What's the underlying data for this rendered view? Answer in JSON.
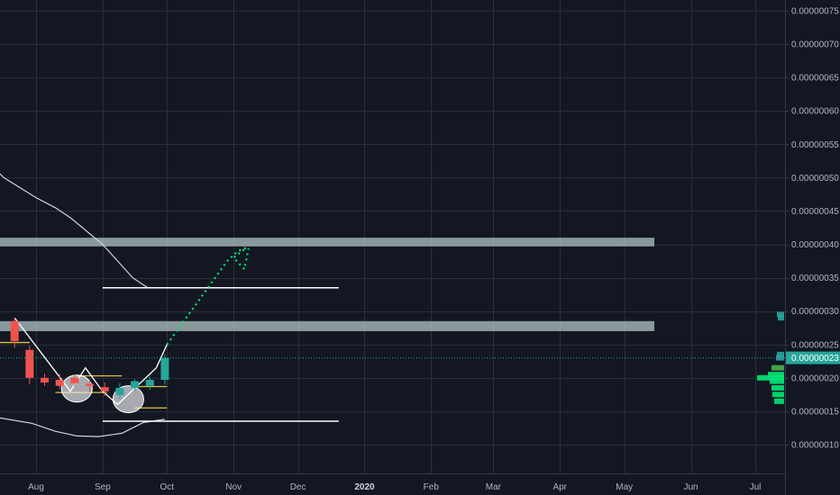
{
  "chart_data": {
    "type": "candlestick",
    "y_axis": {
      "ticks": [
        "0.00000075",
        "0.00000070",
        "0.00000065",
        "0.00000060",
        "0.00000055",
        "0.00000050",
        "0.00000045",
        "0.00000040",
        "0.00000035",
        "0.00000030",
        "0.00000025",
        "0.00000020",
        "0.00000015",
        "0.00000010"
      ],
      "ylim": [
        5e-08,
        7.8e-07
      ]
    },
    "x_axis": {
      "ticks": [
        "Aug",
        "Sep",
        "Oct",
        "Nov",
        "Dec",
        "2020",
        "Feb",
        "Mar",
        "Apr",
        "May",
        "Jun",
        "Jul"
      ],
      "major_tick": "2020"
    },
    "last_price": {
      "label": "0.00000023",
      "value": 2.3e-07,
      "color": "#26a69a"
    },
    "candles": [
      {
        "date": "2019-07-22",
        "open": 2.85e-07,
        "high": 2.9e-07,
        "low": 2.45e-07,
        "close": 2.55e-07
      },
      {
        "date": "2019-07-29",
        "open": 2.42e-07,
        "high": 2.48e-07,
        "low": 1.9e-07,
        "close": 2e-07
      },
      {
        "date": "2019-08-05",
        "open": 2e-07,
        "high": 2.06e-07,
        "low": 1.88e-07,
        "close": 1.93e-07
      },
      {
        "date": "2019-08-12",
        "open": 1.97e-07,
        "high": 2.06e-07,
        "low": 1.83e-07,
        "close": 1.88e-07
      },
      {
        "date": "2019-08-19",
        "open": 2e-07,
        "high": 2.05e-07,
        "low": 1.88e-07,
        "close": 1.92e-07
      },
      {
        "date": "2019-08-26",
        "open": 1.91e-07,
        "high": 1.98e-07,
        "low": 1.78e-07,
        "close": 1.88e-07
      },
      {
        "date": "2019-09-02",
        "open": 1.86e-07,
        "high": 1.93e-07,
        "low": 1.73e-07,
        "close": 1.8e-07
      },
      {
        "date": "2019-09-09",
        "open": 1.74e-07,
        "high": 1.92e-07,
        "low": 1.68e-07,
        "close": 1.85e-07
      },
      {
        "date": "2019-09-16",
        "open": 1.85e-07,
        "high": 1.98e-07,
        "low": 1.8e-07,
        "close": 1.95e-07
      },
      {
        "date": "2019-09-23",
        "open": 1.88e-07,
        "high": 2.02e-07,
        "low": 1.82e-07,
        "close": 1.97e-07
      },
      {
        "date": "2019-09-30",
        "open": 1.97e-07,
        "high": 2.35e-07,
        "low": 1.9e-07,
        "close": 2.3e-07
      }
    ],
    "moving_average": [
      {
        "date": "2019-06-01",
        "value": 6.93e-07
      },
      {
        "date": "2019-06-07",
        "value": 6.67e-07
      },
      {
        "date": "2019-06-18",
        "value": 6e-07
      },
      {
        "date": "2019-07-01",
        "value": 5.5e-07
      },
      {
        "date": "2019-07-17",
        "value": 5e-07
      },
      {
        "date": "2019-08-01",
        "value": 4.7e-07
      },
      {
        "date": "2019-08-10",
        "value": 4.55e-07
      },
      {
        "date": "2019-08-17",
        "value": 4.4e-07
      },
      {
        "date": "2019-09-01",
        "value": 4e-07
      },
      {
        "date": "2019-09-15",
        "value": 3.5e-07
      },
      {
        "date": "2019-09-22",
        "value": 3.35e-07
      }
    ],
    "lower_band": [
      {
        "date": "2019-06-01",
        "value": 1.5e-07
      },
      {
        "date": "2019-06-10",
        "value": 1.45e-07
      },
      {
        "date": "2019-06-20",
        "value": 1.48e-07
      },
      {
        "date": "2019-07-01",
        "value": 1.43e-07
      },
      {
        "date": "2019-07-15",
        "value": 1.4e-07
      },
      {
        "date": "2019-07-30",
        "value": 1.32e-07
      },
      {
        "date": "2019-08-10",
        "value": 1.2e-07
      },
      {
        "date": "2019-08-20",
        "value": 1.13e-07
      },
      {
        "date": "2019-08-30",
        "value": 1.12e-07
      },
      {
        "date": "2019-09-10",
        "value": 1.17e-07
      },
      {
        "date": "2019-09-20",
        "value": 1.33e-07
      },
      {
        "date": "2019-09-30",
        "value": 1.38e-07
      }
    ],
    "resistance_zones": [
      {
        "low": 3.97e-07,
        "high": 4.1e-07,
        "from": "2019-06-01",
        "to": "2020-05-15"
      },
      {
        "low": 2.7e-07,
        "high": 2.85e-07,
        "from": "2019-06-01",
        "to": "2020-05-15"
      }
    ],
    "horizontal_lines": [
      {
        "value": 3.35e-07,
        "from": "2019-09-01",
        "to": "2019-12-20",
        "color": "#ffffff"
      },
      {
        "value": 1.35e-07,
        "from": "2019-09-01",
        "to": "2019-12-20",
        "color": "#ffffff"
      }
    ],
    "short_levels": [
      {
        "value": 2.53e-07,
        "from": "2019-06-01",
        "to": "2019-07-29",
        "color": "#e0c341"
      },
      {
        "value": 2.03e-07,
        "from": "2019-08-20",
        "to": "2019-09-10",
        "color": "#e0c341"
      },
      {
        "value": 1.78e-07,
        "from": "2019-08-10",
        "to": "2019-09-03",
        "color": "#e0c341"
      },
      {
        "value": 1.55e-07,
        "from": "2019-09-16",
        "to": "2019-10-01",
        "color": "#e0c341"
      },
      {
        "value": 1.87e-07,
        "from": "2019-09-14",
        "to": "2019-10-01",
        "color": "#e0c341"
      }
    ],
    "pattern_path": [
      {
        "date": "2019-07-22",
        "value": 2.9e-07
      },
      {
        "date": "2019-08-17",
        "value": 1.8e-07
      },
      {
        "date": "2019-08-24",
        "value": 2.15e-07
      },
      {
        "date": "2019-09-01",
        "value": 1.8e-07
      },
      {
        "date": "2019-09-08",
        "value": 1.6e-07
      },
      {
        "date": "2019-09-26",
        "value": 2.15e-07
      },
      {
        "date": "2019-10-01",
        "value": 2.5e-07
      }
    ],
    "pattern_circles": [
      {
        "date": "2019-08-20",
        "value": 1.84e-07
      },
      {
        "date": "2019-09-13",
        "value": 1.68e-07
      }
    ],
    "projection_path": [
      {
        "date": "2019-10-01",
        "value": 2.5e-07
      },
      {
        "date": "2019-10-29",
        "value": 3.75e-07
      },
      {
        "date": "2019-11-03",
        "value": 3.9e-07
      },
      {
        "date": "2019-11-07",
        "value": 3.95e-07
      },
      {
        "date": "2019-11-01",
        "value": 3.8e-07
      },
      {
        "date": "2019-11-06",
        "value": 3.63e-07
      },
      {
        "date": "2019-11-08",
        "value": 3.94e-07
      }
    ],
    "volume_profile": [
      {
        "price": 2.95e-07,
        "size": 8,
        "color": "#26a69a"
      },
      {
        "price": 2.9e-07,
        "size": 7,
        "color": "#26a69a"
      },
      {
        "price": 2.35e-07,
        "size": 8,
        "color": "#26a69a"
      },
      {
        "price": 2.3e-07,
        "size": 9,
        "color": "#26a69a"
      },
      {
        "price": 2.15e-07,
        "size": 14,
        "color": "#4caf50"
      },
      {
        "price": 2.05e-07,
        "size": 18,
        "color": "#00e676"
      },
      {
        "price": 2e-07,
        "size": 30,
        "color": "#00e676"
      },
      {
        "price": 1.95e-07,
        "size": 16,
        "color": "#00e676"
      },
      {
        "price": 1.85e-07,
        "size": 14,
        "color": "#00e676"
      },
      {
        "price": 1.75e-07,
        "size": 13,
        "color": "#00e676"
      },
      {
        "price": 1.65e-07,
        "size": 11,
        "color": "#00e676"
      }
    ],
    "colors": {
      "background": "#131722",
      "grid": "#2a2e39",
      "up": "#26a69a",
      "down": "#ef5350",
      "zone": "#b2c4c4",
      "projection": "#00e676"
    },
    "grid": true,
    "legend": "none"
  }
}
